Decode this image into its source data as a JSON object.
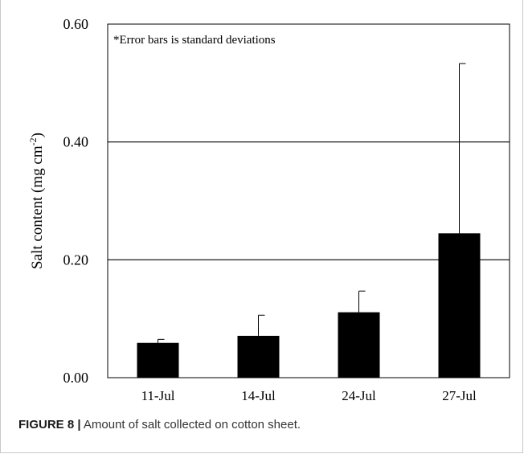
{
  "chart_data": {
    "type": "bar",
    "categories": [
      "11-Jul",
      "14-Jul",
      "24-Jul",
      "27-Jul"
    ],
    "values": [
      0.059,
      0.071,
      0.111,
      0.245
    ],
    "error_upper": [
      0.065,
      0.106,
      0.147,
      0.533
    ],
    "title": "",
    "annotation": "*Error bars is standard deviations",
    "xlabel": "",
    "ylabel": "Salt content (mg cm",
    "ylabel_exponent": "-2",
    "ylabel_close": ")",
    "ylim": [
      0,
      0.6
    ],
    "yticks": [
      0.0,
      0.2,
      0.4,
      0.6
    ],
    "ytick_labels": [
      "0.00",
      "0.20",
      "0.40",
      "0.60"
    ],
    "grid": "horizontal",
    "bar_color": "#000000"
  },
  "caption": {
    "label": "FIGURE 8 |",
    "text": " Amount of salt collected on cotton sheet."
  }
}
